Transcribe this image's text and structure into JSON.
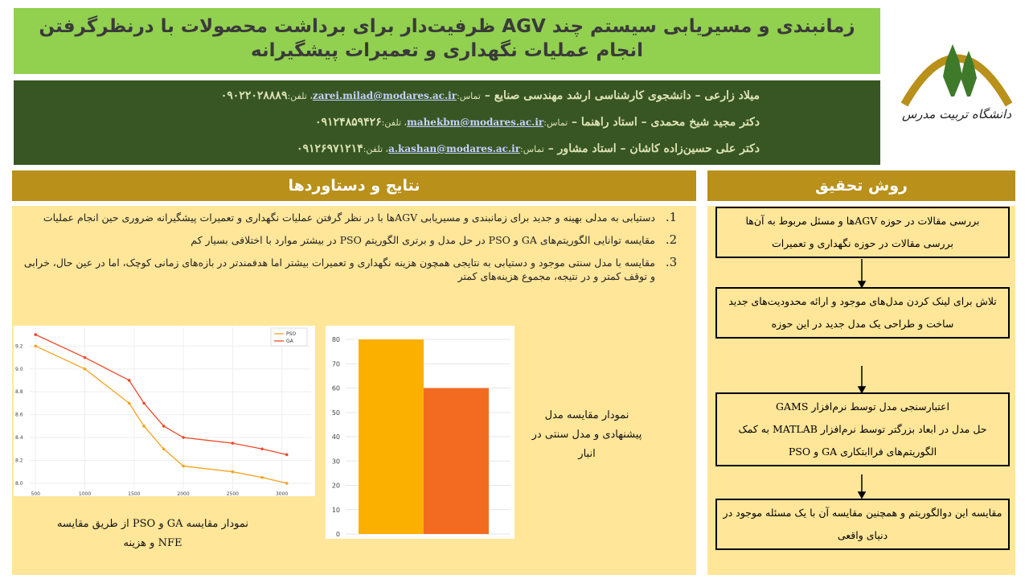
{
  "header": {
    "title": "زمانبندی و مسیریابی سیستم چند AGV ظرفیت‌دار برای برداشت محصولات با درنظرگرفتن انجام عملیات نگهداری و تعمیرات پیشگیرانه"
  },
  "authors": [
    {
      "name_role": "میلاد زارعی – دانشجوی کارشناسی ارشد مهندسی صنایع –",
      "contact_label": "تماس:",
      "email": "zarei.milad@modares.ac.ir",
      "phone_label": "، تلفن:",
      "phone": "۰۹۰۲۲۰۲۸۸۸۹"
    },
    {
      "name_role": "دکتر مجید شیخ محمدی – استاد راهنما –",
      "contact_label": "تماس:",
      "email": "mahekbm@modares.ac.ir",
      "phone_label": "، تلفن:",
      "phone": "۰۹۱۲۴۸۵۹۴۲۶"
    },
    {
      "name_role": "دکتر علی حسین‌زاده کاشان – استاد مشاور –",
      "contact_label": "تماس:",
      "email": "a.kashan@modares.ac.ir",
      "phone_label": "، تلفن:",
      "phone": "۰۹۱۲۶۹۷۱۲۱۴"
    }
  ],
  "logo": {
    "text": "دانشگاه تربیت مدرس"
  },
  "results": {
    "heading": "نتایج و دستاوردها",
    "items": [
      {
        "marker": "1.",
        "text": "دستیابی به مدلی بهینه و جدید برای زمانبندی و مسیریابی AGVها با در نظر گرفتن عملیات نگهداری و تعمیرات پیشگیرانه ضروری حین انجام عملیات"
      },
      {
        "marker": "2.",
        "text": "مقایسه توانایی الگوریتم‌های GA و PSO در حل مدل و برتری الگوریتم PSO در بیشتر موارد با اختلافی بسیار کم"
      },
      {
        "marker": "3.",
        "text": "مقایسه با مدل سنتی موجود و دستیابی به نتایجی همچون هزینه نگهداری و تعمیرات بیشتر اما هدفمندتر در بازه‌های زمانی کوچک، اما در عین حال، خرابی و توقف کمتر و در نتیجه، مجموع هزینه‌های کمتر"
      }
    ]
  },
  "method": {
    "heading": "روش تحقیق",
    "steps": [
      [
        "بررسی مقالات در حوزه AGVها و مسئل مربوط به آن‌ها",
        "بررسی مقالات در حوزه نگهداری و تعمیرات"
      ],
      [
        "تلاش برای لینک کردن مدل‌های موجود و ارائه محدودیت‌های جدید",
        "ساخت و طراحی یک مدل جدید در این حوزه"
      ],
      [
        "اعتبارسنجی مدل توسط نرم‌افزار GAMS",
        "حل مدل در ابعاد بزرگتر توسط نرم‌افزار MATLAB به کمک الگوریتم‌های فراابتکاری GA و PSO"
      ],
      [
        "مقایسه این دوالگوریتم و همچنین مقایسه آن با یک مسئله موجود در دنیای واقعی"
      ]
    ]
  },
  "chart_data": [
    {
      "type": "line",
      "title": "نمودار مقایسه GA و PSO از طریق مقایسه NFE و هزینه",
      "x": [
        500,
        1000,
        1450,
        1600,
        1800,
        2000,
        2500,
        2800,
        3050
      ],
      "series": [
        {
          "name": "PSO",
          "color": "#f6a21d",
          "values": [
            9.2,
            9.0,
            8.7,
            8.5,
            8.3,
            8.15,
            8.1,
            8.05,
            8.0
          ]
        },
        {
          "name": "GA",
          "color": "#ee4a2a",
          "values": [
            9.3,
            9.1,
            8.9,
            8.7,
            8.5,
            8.4,
            8.35,
            8.3,
            8.25
          ]
        }
      ],
      "xlim": [
        400,
        3150
      ],
      "xticks": [
        500,
        1000,
        1500,
        2000,
        2500,
        3000
      ],
      "ylim": [
        7.95,
        9.35
      ],
      "yticks": [
        {
          "value": 8.0,
          "label": "8.0"
        },
        8.2,
        8.4,
        8.6,
        8.8,
        {
          "value": 9.0,
          "label": "9.0"
        },
        9.2
      ],
      "grid": true,
      "legend": "upper-right"
    },
    {
      "type": "bar",
      "title": "نمودار مقایسه مدل پیشنهادی و مدل سنتی در انبار",
      "categories": [
        null,
        null
      ],
      "values": [
        80,
        60
      ],
      "colors": [
        "#fbb000",
        "#f26b21"
      ],
      "ylim": [
        0,
        85
      ],
      "yticks": [
        0,
        10,
        20,
        30,
        40,
        50,
        60,
        70,
        80
      ],
      "grid": true
    }
  ]
}
